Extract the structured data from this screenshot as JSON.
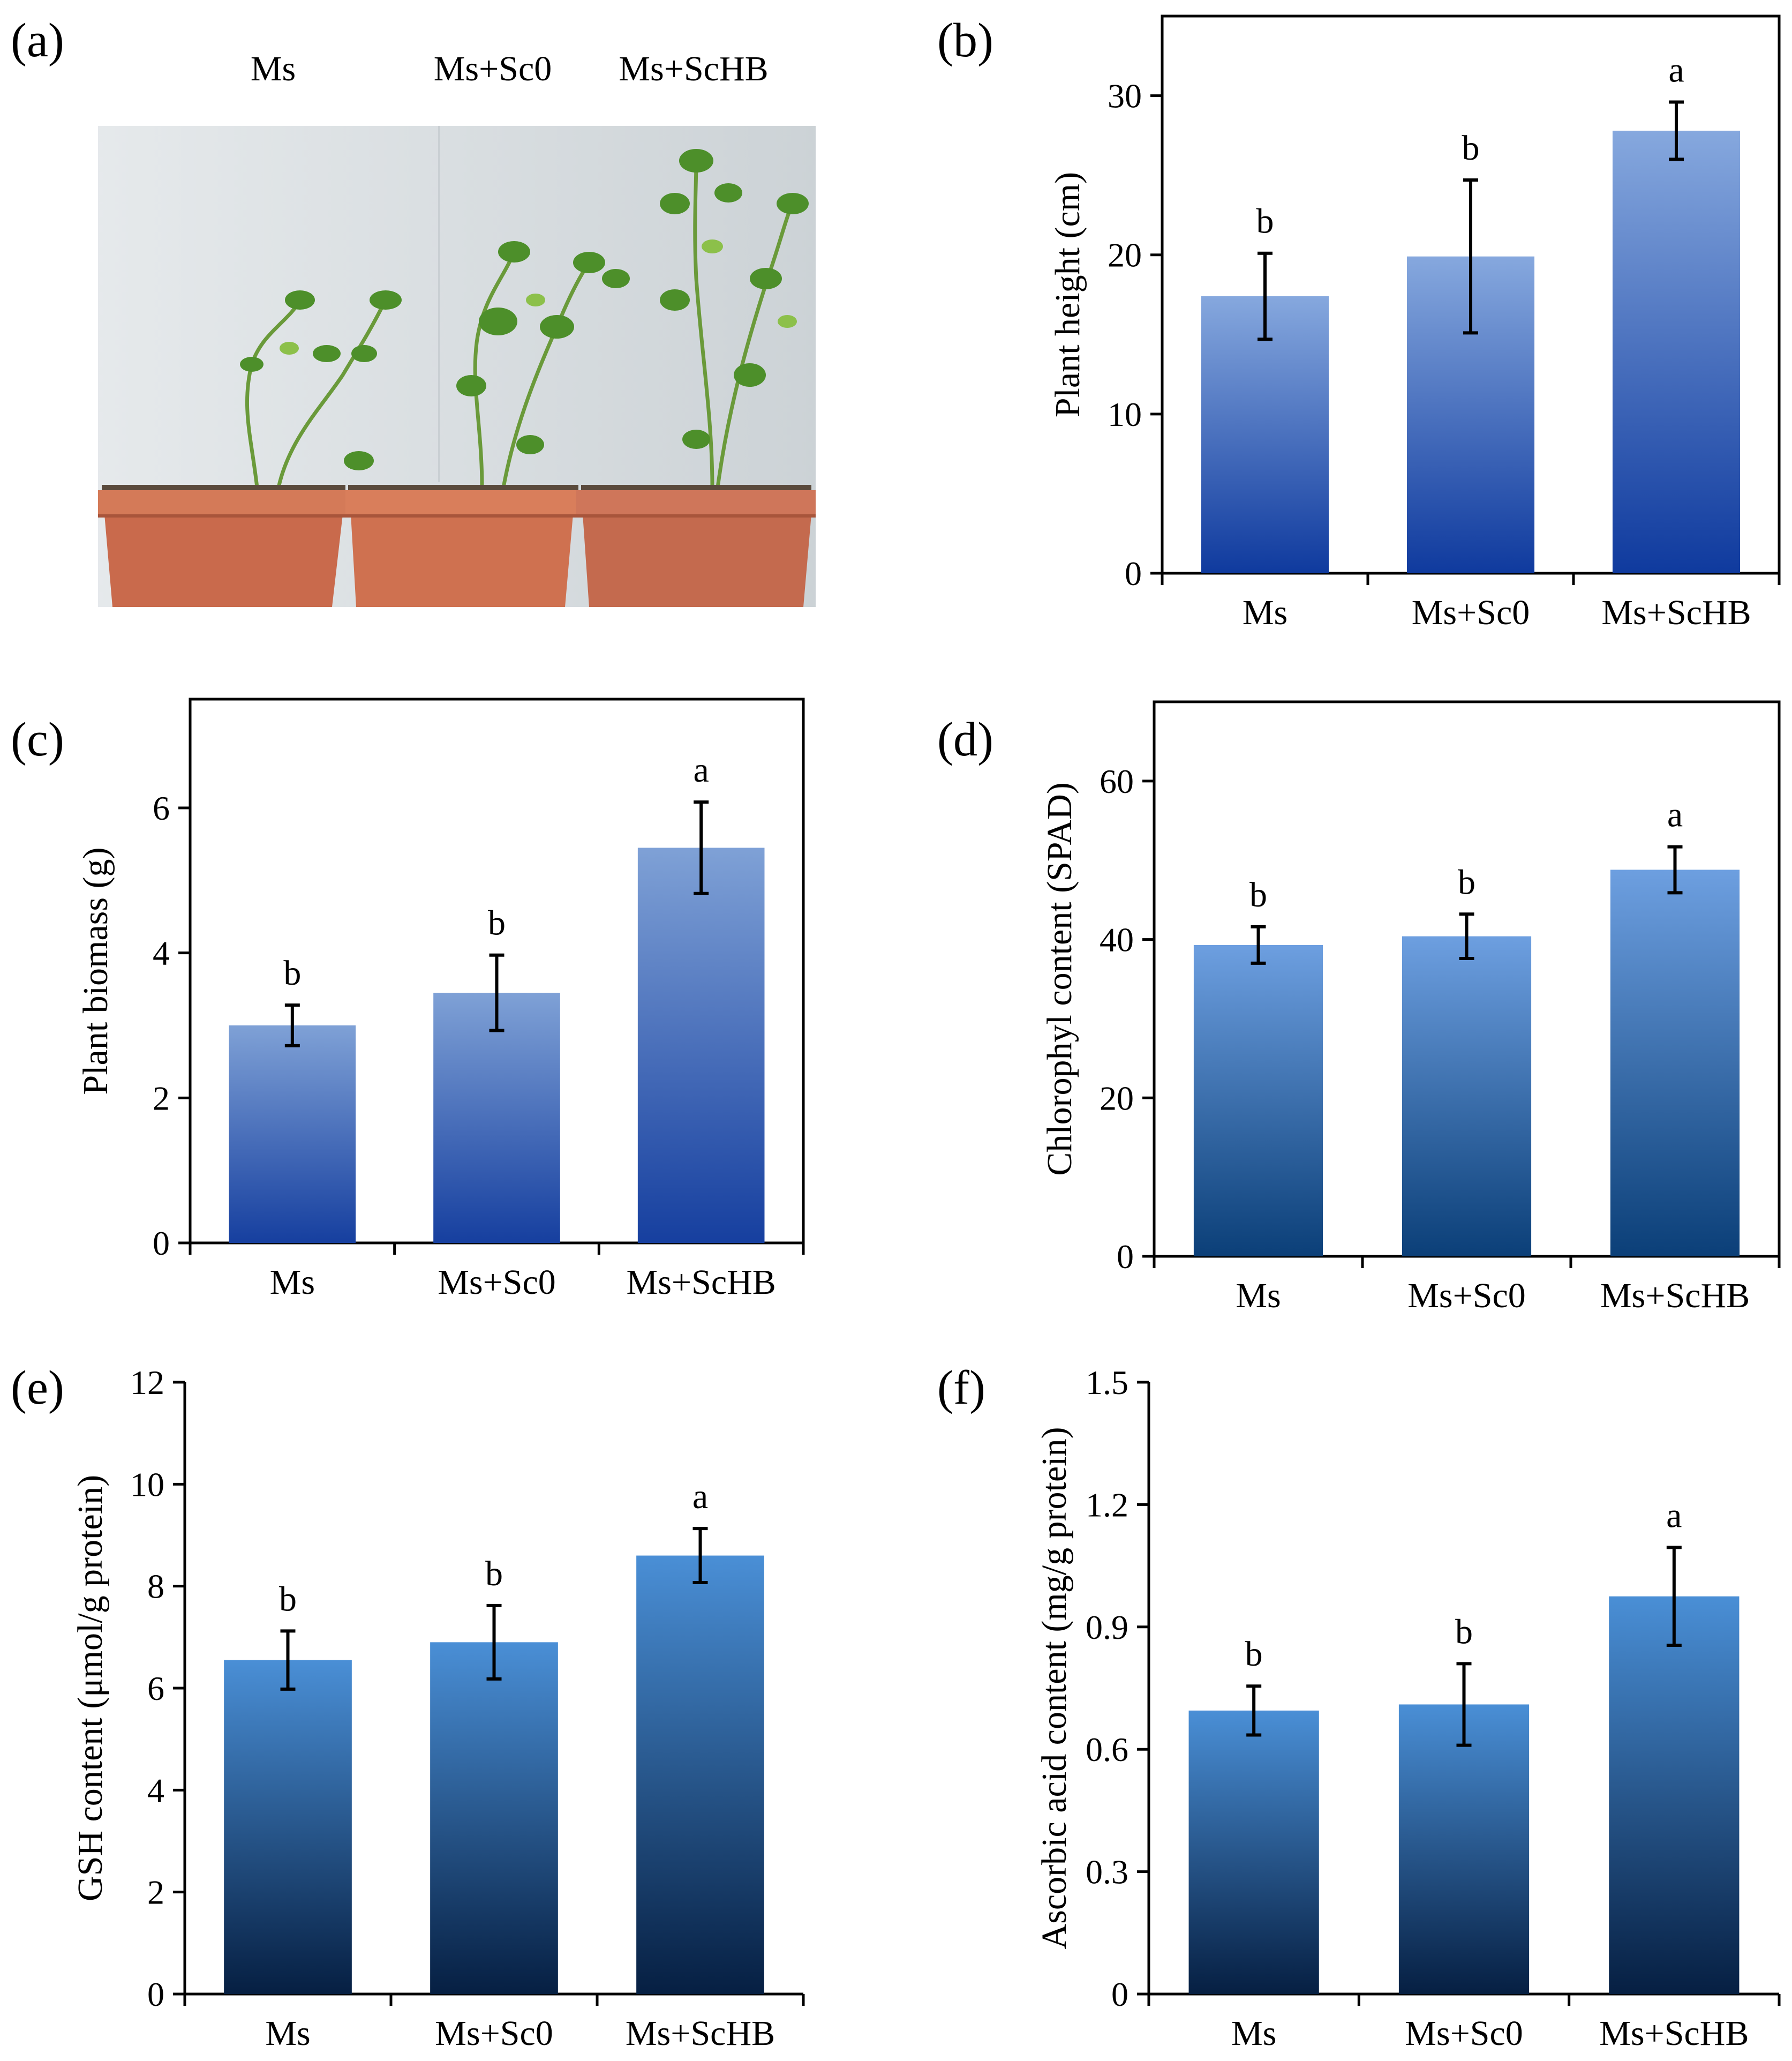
{
  "panel_a": {
    "label": "(a)",
    "photo_labels": [
      "Ms",
      "Ms+Sc0",
      "Ms+ScHB"
    ],
    "photo_icon": "potted-alfalfa-plants-photo",
    "colors": {
      "wall": "#dfe3e6",
      "pot": "#c96a4c",
      "soil": "#5a4a3c",
      "leaf": "#4e9a2a"
    }
  },
  "colors": {
    "axis": "#000000",
    "error_bar": "#000000"
  },
  "chart_data": [
    {
      "id": "b",
      "panel_label": "(b)",
      "type": "bar",
      "categories": [
        "Ms",
        "Ms+Sc0",
        "Ms+ScHB"
      ],
      "values": [
        17.4,
        19.9,
        27.8
      ],
      "errors": [
        2.7,
        4.8,
        1.8
      ],
      "letters": [
        "b",
        "b",
        "a"
      ],
      "ylabel": "Plant height (cm)",
      "ylim": [
        0,
        35
      ],
      "yticks": [
        0,
        10,
        20,
        30
      ],
      "tick_labels": [
        "0",
        "10",
        "20",
        "30"
      ],
      "gradient": [
        "#0f3a9e",
        "#86a8de"
      ],
      "frame": "box"
    },
    {
      "id": "c",
      "panel_label": "(c)",
      "type": "bar",
      "categories": [
        "Ms",
        "Ms+Sc0",
        "Ms+ScHB"
      ],
      "values": [
        3.0,
        3.45,
        5.45
      ],
      "errors": [
        0.28,
        0.52,
        0.63
      ],
      "letters": [
        "b",
        "b",
        "a"
      ],
      "ylabel": "Plant biomass (g)",
      "ylim": [
        0,
        7.5
      ],
      "yticks": [
        0,
        2,
        4,
        6
      ],
      "tick_labels": [
        "0",
        "2",
        "4",
        "6"
      ],
      "gradient": [
        "#163f9f",
        "#7fa1d6"
      ],
      "frame": "box"
    },
    {
      "id": "d",
      "panel_label": "(d)",
      "type": "bar",
      "categories": [
        "Ms",
        "Ms+Sc0",
        "Ms+ScHB"
      ],
      "values": [
        39.3,
        40.4,
        48.8
      ],
      "errors": [
        2.3,
        2.8,
        2.9
      ],
      "letters": [
        "b",
        "b",
        "a"
      ],
      "ylabel": "Chlorophyl content (SPAD)",
      "ylim": [
        0,
        70
      ],
      "yticks": [
        0,
        20,
        40,
        60
      ],
      "tick_labels": [
        "0",
        "20",
        "40",
        "60"
      ],
      "gradient": [
        "#0b3f78",
        "#6d9fe0"
      ],
      "frame": "box"
    },
    {
      "id": "e",
      "panel_label": "(e)",
      "type": "bar",
      "categories": [
        "Ms",
        "Ms+Sc0",
        "Ms+ScHB"
      ],
      "values": [
        6.55,
        6.9,
        8.6
      ],
      "errors": [
        0.57,
        0.72,
        0.53
      ],
      "letters": [
        "b",
        "b",
        "a"
      ],
      "ylabel": "GSH content (μmol/g protein)",
      "ylim": [
        0,
        12
      ],
      "yticks": [
        0,
        2,
        4,
        6,
        8,
        10,
        12
      ],
      "tick_labels": [
        "0",
        "2",
        "4",
        "6",
        "8",
        "10",
        "12"
      ],
      "gradient": [
        "#061f42",
        "#4a8fd6"
      ],
      "frame": "axes"
    },
    {
      "id": "f",
      "panel_label": "(f)",
      "type": "bar",
      "categories": [
        "Ms",
        "Ms+Sc0",
        "Ms+ScHB"
      ],
      "values": [
        0.695,
        0.71,
        0.975
      ],
      "errors": [
        0.06,
        0.1,
        0.12
      ],
      "letters": [
        "b",
        "b",
        "a"
      ],
      "ylabel": "Ascorbic acid content (mg/g protein)",
      "ylim": [
        0,
        1.5
      ],
      "yticks": [
        0,
        0.3,
        0.6,
        0.9,
        1.2,
        1.5
      ],
      "tick_labels": [
        "0",
        "0.3",
        "0.6",
        "0.9",
        "1.2",
        "1.5"
      ],
      "gradient": [
        "#061f42",
        "#4a8fd6"
      ],
      "frame": "axes"
    }
  ]
}
